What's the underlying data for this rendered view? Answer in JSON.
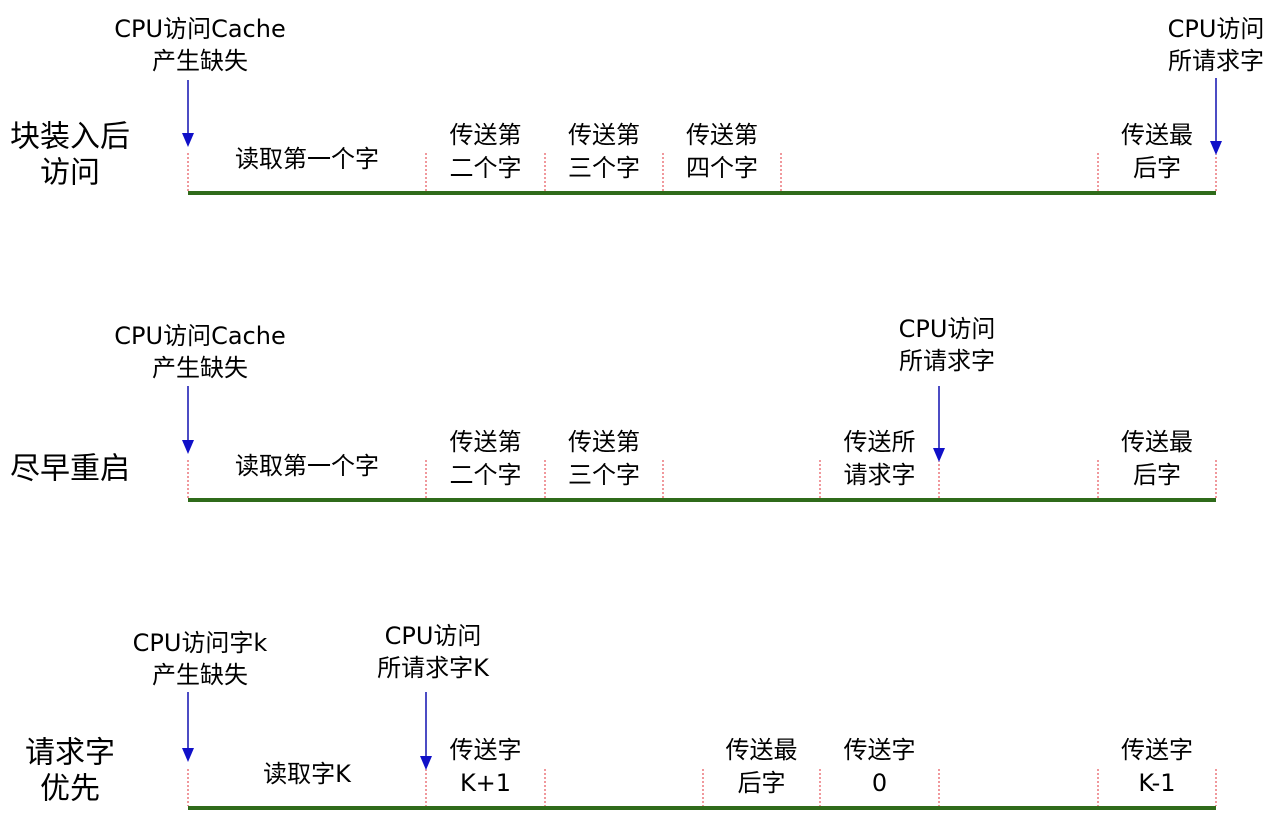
{
  "rows": [
    {
      "title": [
        "块装入后",
        "访问"
      ],
      "events": [
        {
          "id": "miss",
          "lines": [
            "CPU访问Cache",
            "产生缺失"
          ]
        },
        {
          "id": "req",
          "lines": [
            "CPU访问",
            "所请求字"
          ]
        }
      ],
      "segments": [
        {
          "lines": [
            "读取第一个字"
          ]
        },
        {
          "lines": [
            "传送第",
            "二个字"
          ]
        },
        {
          "lines": [
            "传送第",
            "三个字"
          ]
        },
        {
          "lines": [
            "传送第",
            "四个字"
          ]
        },
        {
          "lines": []
        },
        {
          "lines": [
            "传送最",
            "后字"
          ]
        }
      ]
    },
    {
      "title": [
        "尽早重启"
      ],
      "events": [
        {
          "id": "miss",
          "lines": [
            "CPU访问Cache",
            "产生缺失"
          ]
        },
        {
          "id": "req",
          "lines": [
            "CPU访问",
            "所请求字"
          ]
        }
      ],
      "segments": [
        {
          "lines": [
            "读取第一个字"
          ]
        },
        {
          "lines": [
            "传送第",
            "二个字"
          ]
        },
        {
          "lines": [
            "传送第",
            "三个字"
          ]
        },
        {
          "lines": []
        },
        {
          "lines": [
            "传送所",
            "请求字"
          ]
        },
        {
          "lines": []
        },
        {
          "lines": [
            "传送最",
            "后字"
          ]
        }
      ]
    },
    {
      "title": [
        "请求字",
        "优先"
      ],
      "events": [
        {
          "id": "miss",
          "lines": [
            "CPU访问字k",
            "产生缺失"
          ]
        },
        {
          "id": "req",
          "lines": [
            "CPU访问",
            "所请求字K"
          ]
        }
      ],
      "segments": [
        {
          "lines": [
            "读取字K"
          ]
        },
        {
          "lines": [
            "传送字",
            "K+1"
          ]
        },
        {
          "lines": []
        },
        {
          "lines": [
            "传送最",
            "后字"
          ]
        },
        {
          "lines": [
            "传送字",
            "0"
          ]
        },
        {
          "lines": []
        },
        {
          "lines": [
            "传送字",
            "K-1"
          ]
        }
      ]
    }
  ],
  "colors": {
    "baseline": "#2f6b1a",
    "divider": "#e0303a",
    "arrow": "#1010c8"
  }
}
